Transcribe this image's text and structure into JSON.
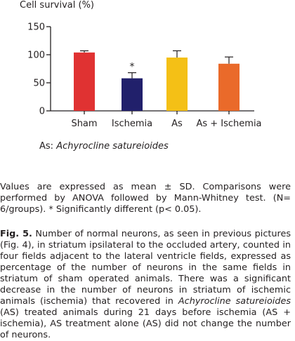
{
  "chart_data": {
    "type": "bar",
    "title": "Cell survival (%)",
    "categories": [
      "Sham",
      "Ischemia",
      "As",
      "As + Ischemia"
    ],
    "values": [
      104,
      58,
      95,
      84
    ],
    "errors": [
      3,
      10,
      12,
      12
    ],
    "annotations": [
      "",
      "*",
      "",
      ""
    ],
    "colors": [
      "#e03232",
      "#21206b",
      "#f4c016",
      "#ea6a2a"
    ],
    "ylim": [
      0,
      150
    ],
    "yticks": [
      0,
      50,
      100,
      150
    ],
    "grid": false,
    "xlabel": "",
    "ylabel": ""
  },
  "legend_note": {
    "prefix": "As: ",
    "species": "Achyrocline satureioides"
  },
  "notes": "Values are expressed as mean ± SD. Comparisons were performed by ANOVA followed by Mann-Whitney test. (N= 6/groups). * Significantly different (p< 0.05).",
  "caption": {
    "label": "Fig. 5.",
    "part1": " Number of normal neurons, as seen in previous pictures (Fig. 4), in striatum ipsilateral to the occluded artery, counted in four fields adjacent to the lateral ventricle fields, expressed as percentage of the number of neurons in the same fields in striatum of sham operated animals. There was a significant decrease in the number of neurons in striatum of ischemic animals (ischemia) that recovered in ",
    "species": "Achyrocline satureioides",
    "part2": " (AS) treated animals during 21 days before ischemia (AS + ischemia), AS treatment alone (AS) did not change the number of neurons."
  }
}
